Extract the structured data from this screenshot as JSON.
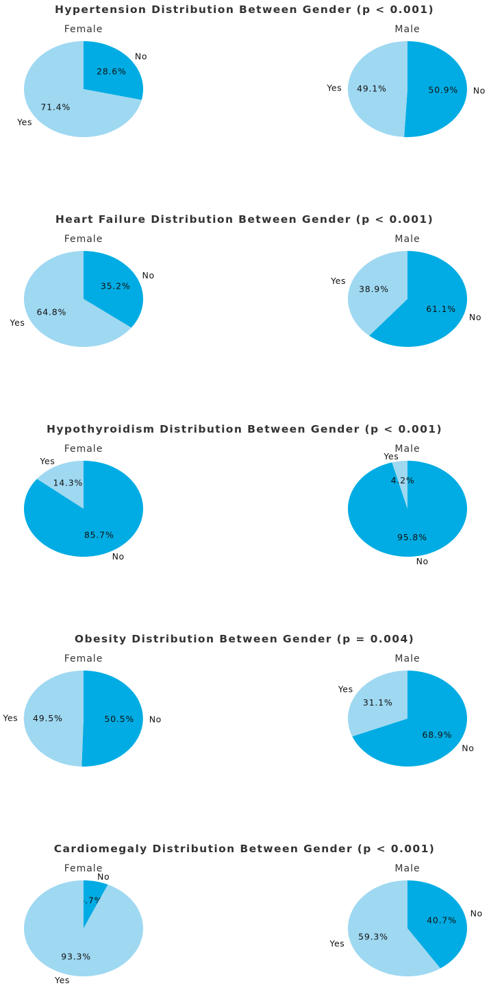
{
  "chart_data": [
    {
      "type": "pie",
      "title": "Hypertension Distribution Between Gender (p < 0.001)",
      "pies": [
        {
          "name": "Female",
          "labels": [
            "No",
            "Yes"
          ],
          "values": [
            28.6,
            71.4
          ],
          "value_labels": [
            "28.6%",
            "71.4%"
          ]
        },
        {
          "name": "Male",
          "labels": [
            "No",
            "Yes"
          ],
          "values": [
            50.9,
            49.1
          ],
          "value_labels": [
            "50.9%",
            "49.1%"
          ]
        }
      ]
    },
    {
      "type": "pie",
      "title": "Heart Failure Distribution Between Gender (p < 0.001)",
      "pies": [
        {
          "name": "Female",
          "labels": [
            "No",
            "Yes"
          ],
          "values": [
            35.2,
            64.8
          ],
          "value_labels": [
            "35.2%",
            "64.8%"
          ]
        },
        {
          "name": "Male",
          "labels": [
            "No",
            "Yes"
          ],
          "values": [
            61.1,
            38.9
          ],
          "value_labels": [
            "61.1%",
            "38.9%"
          ]
        }
      ]
    },
    {
      "type": "pie",
      "title": "Hypothyroidism Distribution Between Gender (p < 0.001)",
      "pies": [
        {
          "name": "Female",
          "labels": [
            "No",
            "Yes"
          ],
          "values": [
            85.7,
            14.3
          ],
          "value_labels": [
            "85.7%",
            "14.3%"
          ]
        },
        {
          "name": "Male",
          "labels": [
            "No",
            "Yes"
          ],
          "values": [
            95.8,
            4.2
          ],
          "value_labels": [
            "95.8%",
            "4.2%"
          ]
        }
      ]
    },
    {
      "type": "pie",
      "title": "Obesity Distribution Between Gender (p = 0.004)",
      "pies": [
        {
          "name": "Female",
          "labels": [
            "No",
            "Yes"
          ],
          "values": [
            50.5,
            49.5
          ],
          "value_labels": [
            "50.5%",
            "49.5%"
          ]
        },
        {
          "name": "Male",
          "labels": [
            "No",
            "Yes"
          ],
          "values": [
            68.9,
            31.1
          ],
          "value_labels": [
            "68.9%",
            "31.1%"
          ]
        }
      ]
    },
    {
      "type": "pie",
      "title": "Cardiomegaly Distribution Between Gender (p < 0.001)",
      "pies": [
        {
          "name": "Female",
          "labels": [
            "No",
            "Yes"
          ],
          "values": [
            6.7,
            93.3
          ],
          "value_labels": [
            "6.7%",
            "93.3%"
          ]
        },
        {
          "name": "Male",
          "labels": [
            "No",
            "Yes"
          ],
          "values": [
            40.7,
            59.3
          ],
          "value_labels": [
            "40.7%",
            "59.3%"
          ]
        }
      ]
    }
  ],
  "colors": {
    "No": "#00ace3",
    "Yes": "#9fd8f1"
  }
}
